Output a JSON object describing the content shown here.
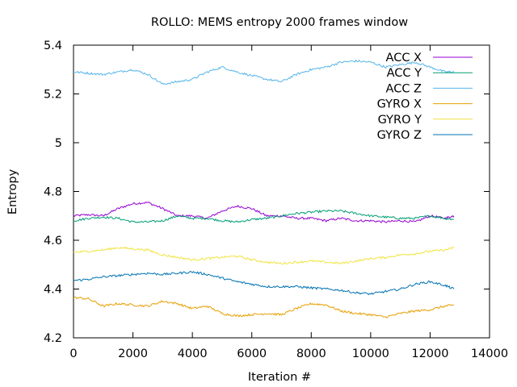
{
  "chart_data": {
    "type": "line",
    "title": "ROLLO: MEMS entropy 2000 frames window",
    "xlabel": "Iteration #",
    "ylabel": "Entropy",
    "xlim": [
      0,
      14000
    ],
    "ylim": [
      4.2,
      5.4
    ],
    "x_ticks": [
      0,
      2000,
      4000,
      6000,
      8000,
      10000,
      12000,
      14000
    ],
    "y_ticks": [
      4.2,
      4.4,
      4.6,
      4.8,
      5,
      5.2,
      5.4
    ],
    "x_tick_labels": [
      "0",
      "2000",
      "4000",
      "6000",
      "8000",
      "10000",
      "12000",
      "14000"
    ],
    "y_tick_labels": [
      "4.2",
      "4.4",
      "4.6",
      "4.8",
      "5",
      "5.2",
      "5.4"
    ],
    "grid": false,
    "legend_position": "top-right",
    "series": [
      {
        "name": "ACC X",
        "color": "#9400d3",
        "x": [
          0,
          500,
          1000,
          1500,
          2000,
          2500,
          3000,
          3500,
          4000,
          4500,
          5000,
          5500,
          6000,
          6500,
          7000,
          7500,
          8000,
          8500,
          9000,
          9500,
          10000,
          10500,
          11000,
          11500,
          12000,
          12500,
          12800
        ],
        "y": [
          4.7,
          4.705,
          4.7,
          4.73,
          4.75,
          4.755,
          4.73,
          4.7,
          4.7,
          4.69,
          4.72,
          4.74,
          4.73,
          4.7,
          4.7,
          4.69,
          4.69,
          4.68,
          4.69,
          4.68,
          4.68,
          4.675,
          4.68,
          4.675,
          4.7,
          4.69,
          4.7
        ]
      },
      {
        "name": "ACC Y",
        "color": "#009e73",
        "x": [
          0,
          500,
          1000,
          1500,
          2000,
          2500,
          3000,
          3500,
          4000,
          4500,
          5000,
          5500,
          6000,
          6500,
          7000,
          7500,
          8000,
          8500,
          9000,
          9500,
          10000,
          10500,
          11000,
          11500,
          12000,
          12500,
          12800
        ],
        "y": [
          4.68,
          4.69,
          4.695,
          4.69,
          4.675,
          4.675,
          4.68,
          4.7,
          4.69,
          4.69,
          4.68,
          4.675,
          4.685,
          4.69,
          4.7,
          4.71,
          4.715,
          4.72,
          4.72,
          4.71,
          4.7,
          4.695,
          4.69,
          4.69,
          4.7,
          4.69,
          4.685
        ]
      },
      {
        "name": "ACC Z",
        "color": "#56b4e9",
        "x": [
          0,
          500,
          1000,
          1500,
          2000,
          2500,
          3000,
          3500,
          4000,
          4500,
          5000,
          5500,
          6000,
          6500,
          7000,
          7500,
          8000,
          8500,
          9000,
          9500,
          10000,
          10500,
          11000,
          11500,
          12000,
          12500,
          12800
        ],
        "y": [
          5.29,
          5.285,
          5.28,
          5.29,
          5.3,
          5.28,
          5.24,
          5.25,
          5.26,
          5.29,
          5.31,
          5.29,
          5.275,
          5.26,
          5.25,
          5.28,
          5.3,
          5.31,
          5.33,
          5.335,
          5.33,
          5.31,
          5.32,
          5.33,
          5.31,
          5.29,
          5.29
        ]
      },
      {
        "name": "GYRO X",
        "color": "#e69f00",
        "x": [
          0,
          500,
          1000,
          1500,
          2000,
          2500,
          3000,
          3500,
          4000,
          4500,
          5000,
          5500,
          6000,
          6500,
          7000,
          7500,
          8000,
          8500,
          9000,
          9500,
          10000,
          10500,
          11000,
          11500,
          12000,
          12500,
          12800
        ],
        "y": [
          4.365,
          4.36,
          4.33,
          4.34,
          4.335,
          4.33,
          4.35,
          4.34,
          4.32,
          4.33,
          4.3,
          4.29,
          4.295,
          4.3,
          4.295,
          4.32,
          4.34,
          4.335,
          4.31,
          4.3,
          4.295,
          4.285,
          4.3,
          4.31,
          4.315,
          4.33,
          4.335
        ]
      },
      {
        "name": "GYRO Y",
        "color": "#f0e442",
        "x": [
          0,
          500,
          1000,
          1500,
          2000,
          2500,
          3000,
          3500,
          4000,
          4500,
          5000,
          5500,
          6000,
          6500,
          7000,
          7500,
          8000,
          8500,
          9000,
          9500,
          10000,
          10500,
          11000,
          11500,
          12000,
          12500,
          12800
        ],
        "y": [
          4.55,
          4.555,
          4.56,
          4.57,
          4.565,
          4.56,
          4.54,
          4.53,
          4.52,
          4.525,
          4.53,
          4.535,
          4.52,
          4.51,
          4.505,
          4.51,
          4.515,
          4.51,
          4.505,
          4.515,
          4.525,
          4.53,
          4.54,
          4.545,
          4.555,
          4.56,
          4.57
        ]
      },
      {
        "name": "GYRO Z",
        "color": "#0072b2",
        "x": [
          0,
          500,
          1000,
          1500,
          2000,
          2500,
          3000,
          3500,
          4000,
          4500,
          5000,
          5500,
          6000,
          6500,
          7000,
          7500,
          8000,
          8500,
          9000,
          9500,
          10000,
          10500,
          11000,
          11500,
          12000,
          12500,
          12800
        ],
        "y": [
          4.435,
          4.44,
          4.45,
          4.455,
          4.46,
          4.465,
          4.46,
          4.465,
          4.47,
          4.46,
          4.445,
          4.43,
          4.42,
          4.41,
          4.41,
          4.41,
          4.405,
          4.4,
          4.395,
          4.385,
          4.38,
          4.39,
          4.4,
          4.42,
          4.43,
          4.415,
          4.4
        ]
      }
    ]
  }
}
